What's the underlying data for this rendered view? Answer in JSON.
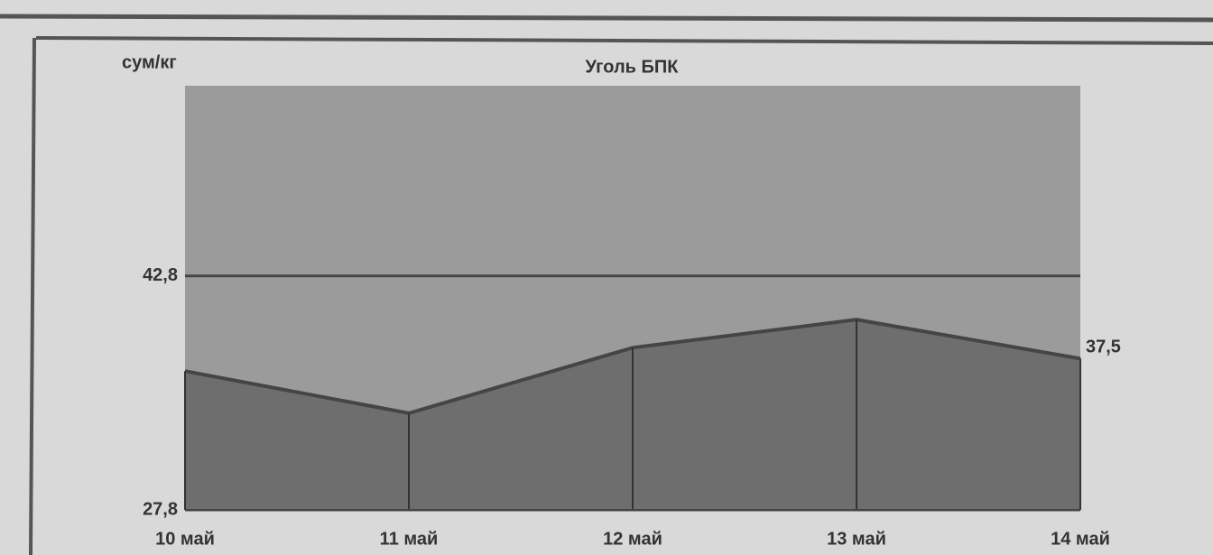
{
  "chart_data": {
    "type": "area",
    "title": "Уголь БПК",
    "y_label": "сум/кг",
    "categories": [
      "10 май",
      "11 май",
      "12 май",
      "13 май",
      "14 май"
    ],
    "values": [
      36.7,
      34.0,
      38.2,
      40.0,
      37.5
    ],
    "value_labels": [
      null,
      null,
      null,
      null,
      "37,5"
    ],
    "color": "#6e6e6e",
    "line_color": "#454545",
    "plot_background": "#9b9b9b",
    "ylim": [
      27.8,
      55
    ],
    "yticks": [
      {
        "value": 27.8,
        "label": "27,8"
      },
      {
        "value": 42.8,
        "label": "42,8"
      }
    ],
    "grid": true
  }
}
